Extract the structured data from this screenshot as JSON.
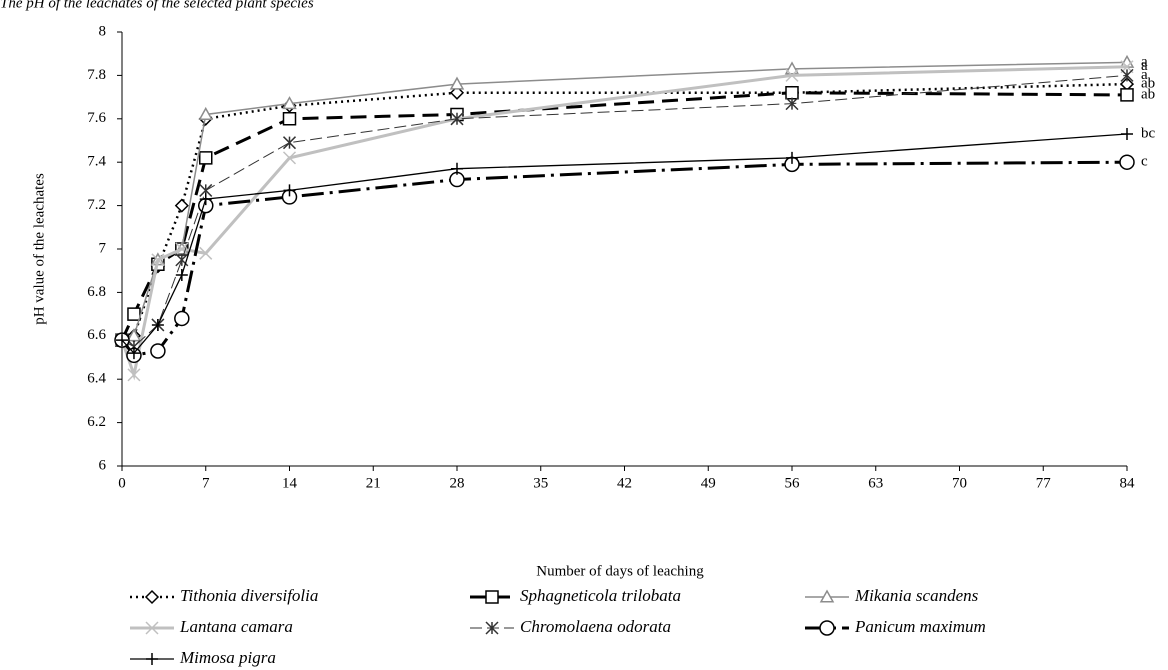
{
  "chart_data": {
    "type": "line",
    "title": "The pH of the leachates of the selected plant species",
    "x_label": "Number of days of leaching",
    "y_label": "pH value of the leachates",
    "x": [
      0,
      1,
      3,
      5,
      7,
      14,
      28,
      56,
      84
    ],
    "xlim": [
      0,
      84
    ],
    "xticks": [
      0,
      7,
      14,
      21,
      28,
      35,
      42,
      49,
      56,
      63,
      70,
      77,
      84
    ],
    "ylim": [
      6,
      8
    ],
    "yticks": [
      6,
      6.2,
      6.4,
      6.6,
      6.8,
      7,
      7.2,
      7.4,
      7.6,
      7.8,
      8
    ],
    "series": [
      {
        "name": "Tithonia diversifolia",
        "color": "#000000",
        "label": "ab",
        "values": [
          6.58,
          6.6,
          6.92,
          7.2,
          7.6,
          7.66,
          7.72,
          7.72,
          7.76
        ]
      },
      {
        "name": "Sphagneticola trilobata",
        "color": "#000000",
        "label": "ab",
        "values": [
          6.58,
          6.7,
          6.93,
          7.0,
          7.42,
          7.6,
          7.62,
          7.72,
          7.71
        ]
      },
      {
        "name": "Mikania scandens",
        "color": "#8c8c8c",
        "label": "a",
        "values": [
          6.58,
          6.6,
          6.95,
          7.0,
          7.62,
          7.67,
          7.76,
          7.83,
          7.86
        ]
      },
      {
        "name": "Lantana camara",
        "color": "#c0c0c0",
        "label": "a",
        "values": [
          6.58,
          6.42,
          6.95,
          7.0,
          6.98,
          7.42,
          7.6,
          7.8,
          7.84
        ]
      },
      {
        "name": "Chromolaena odorata",
        "color": "#333333",
        "label": "a",
        "values": [
          6.58,
          6.55,
          6.65,
          6.95,
          7.27,
          7.49,
          7.6,
          7.67,
          7.8
        ]
      },
      {
        "name": "Panicum maximum",
        "color": "#000000",
        "label": "c",
        "values": [
          6.58,
          6.51,
          6.53,
          6.68,
          7.2,
          7.24,
          7.32,
          7.39,
          7.4
        ]
      },
      {
        "name": "Mimosa pigra",
        "color": "#000000",
        "label": "bc",
        "values": [
          6.58,
          6.52,
          6.65,
          6.88,
          7.23,
          7.27,
          7.37,
          7.42,
          7.53
        ]
      }
    ]
  }
}
